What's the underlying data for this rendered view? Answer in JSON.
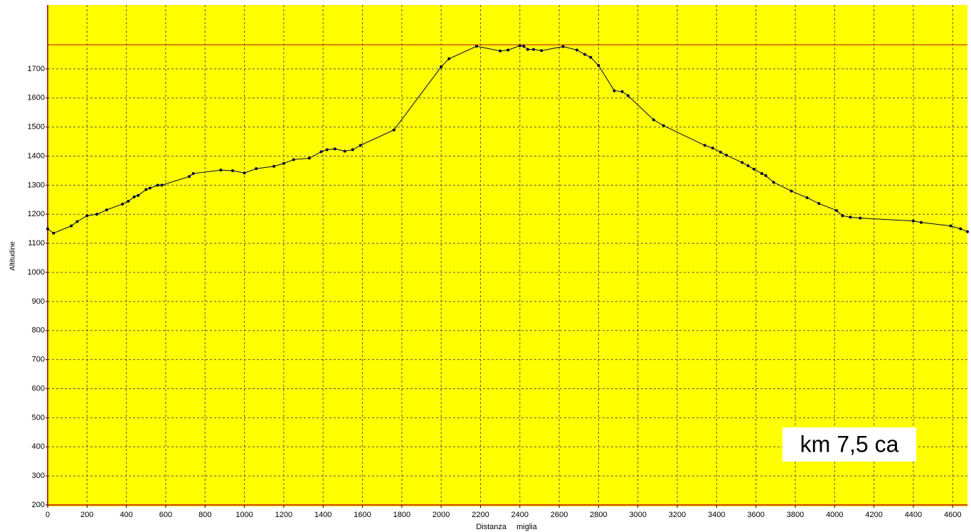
{
  "chart_data": {
    "type": "line",
    "y_label": "Altitudine",
    "x_label": "Distanza",
    "x_unit": "miglia",
    "annotation": "km 7,5 ca",
    "xlim": [
      0,
      4675
    ],
    "ylim": [
      200,
      1920
    ],
    "xticks": [
      0,
      200,
      400,
      600,
      800,
      1000,
      1200,
      1400,
      1600,
      1800,
      2000,
      2200,
      2400,
      2600,
      2800,
      3000,
      3200,
      3400,
      3600,
      3800,
      4000,
      4200,
      4400,
      4600
    ],
    "yticks": [
      200,
      300,
      400,
      500,
      600,
      700,
      800,
      900,
      1000,
      1100,
      1200,
      1300,
      1400,
      1500,
      1600,
      1700
    ],
    "grid": true,
    "background": "#ffff00",
    "max_line": 1783,
    "series": [
      {
        "name": "Altitudine",
        "color": "#000040",
        "x": [
          0,
          30,
          120,
          150,
          200,
          250,
          300,
          380,
          410,
          440,
          460,
          500,
          520,
          560,
          580,
          720,
          740,
          880,
          940,
          1000,
          1060,
          1150,
          1200,
          1250,
          1330,
          1390,
          1420,
          1460,
          1510,
          1550,
          1590,
          1760,
          2000,
          2040,
          2180,
          2300,
          2340,
          2400,
          2420,
          2440,
          2470,
          2510,
          2620,
          2690,
          2730,
          2760,
          2800,
          2880,
          2920,
          2950,
          3080,
          3130,
          3340,
          3380,
          3420,
          3450,
          3530,
          3560,
          3590,
          3630,
          3650,
          3690,
          3780,
          3860,
          3920,
          4010,
          4040,
          4080,
          4130,
          4400,
          4440,
          4590,
          4640,
          4675
        ],
        "values": [
          1150,
          1135,
          1160,
          1175,
          1195,
          1200,
          1215,
          1235,
          1245,
          1260,
          1265,
          1285,
          1290,
          1300,
          1300,
          1330,
          1340,
          1352,
          1350,
          1342,
          1357,
          1365,
          1375,
          1388,
          1393,
          1415,
          1422,
          1425,
          1417,
          1422,
          1437,
          1490,
          1707,
          1735,
          1778,
          1762,
          1765,
          1780,
          1778,
          1767,
          1767,
          1763,
          1777,
          1765,
          1750,
          1740,
          1712,
          1625,
          1622,
          1608,
          1525,
          1505,
          1437,
          1428,
          1414,
          1403,
          1378,
          1367,
          1355,
          1340,
          1333,
          1310,
          1280,
          1257,
          1237,
          1213,
          1195,
          1190,
          1187,
          1177,
          1172,
          1160,
          1150,
          1140
        ]
      }
    ]
  }
}
